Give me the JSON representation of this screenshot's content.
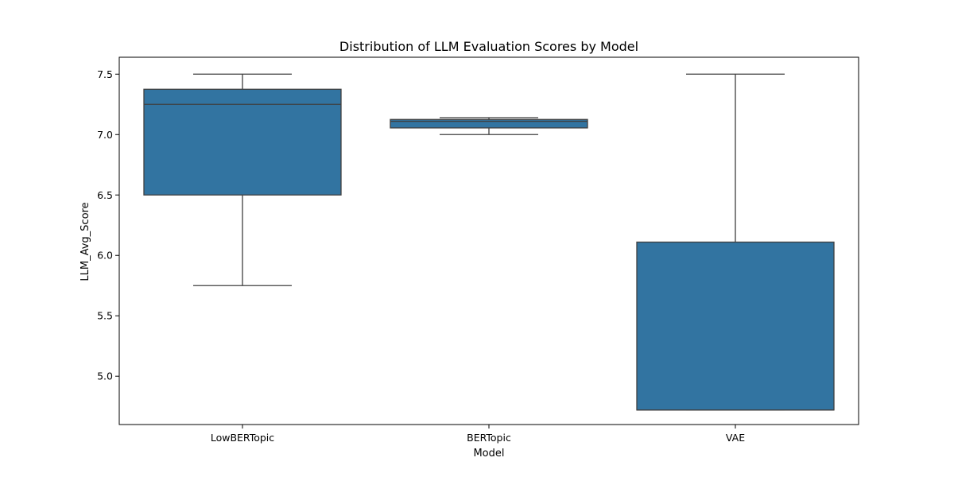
{
  "chart_data": {
    "type": "box",
    "title": "Distribution of LLM Evaluation Scores by Model",
    "xlabel": "Model",
    "ylabel": "LLM_Avg_Score",
    "categories": [
      "LowBERTopic",
      "BERTopic",
      "VAE"
    ],
    "boxes": [
      {
        "category": "LowBERTopic",
        "whisker_low": 5.75,
        "q1": 6.5,
        "median": 7.25,
        "q3": 7.375,
        "whisker_high": 7.5
      },
      {
        "category": "BERTopic",
        "whisker_low": 7.0,
        "q1": 7.055,
        "median": 7.11,
        "q3": 7.125,
        "whisker_high": 7.14
      },
      {
        "category": "VAE",
        "whisker_low": 4.72,
        "q1": 4.72,
        "median": 4.72,
        "q3": 6.11,
        "whisker_high": 7.5
      }
    ],
    "yticks": [
      5.0,
      5.5,
      6.0,
      6.5,
      7.0,
      7.5
    ],
    "ytick_labels": [
      "5.0",
      "5.5",
      "6.0",
      "6.5",
      "7.0",
      "7.5"
    ],
    "ylim": [
      4.6,
      7.64
    ],
    "grid": false,
    "colors": {
      "box_fill": "#3274a1",
      "line": "#3f3f3f",
      "axis": "#000000"
    }
  }
}
